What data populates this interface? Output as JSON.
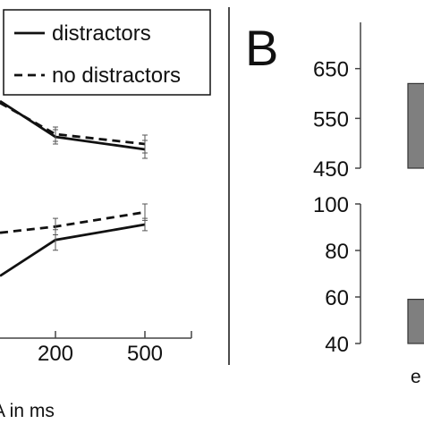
{
  "chart_data": [
    {
      "type": "line",
      "panel": "A",
      "legend": {
        "placement": "top-right",
        "entries": [
          {
            "label": "distractors",
            "style": "solid"
          },
          {
            "label": "no distractors",
            "style": "dashed"
          }
        ]
      },
      "x_tick_labels": [
        "200",
        "500"
      ],
      "xlabel_partial": "A in ms",
      "subplots": [
        {
          "name": "upper",
          "series": [
            {
              "name": "distractors",
              "style": "solid",
              "points": [
                {
                  "x": "0",
                  "y": 0.92
                },
                {
                  "x": "200",
                  "y": 0.52,
                  "err": 0.08
                },
                {
                  "x": "500",
                  "y": 0.38,
                  "err": 0.1
                }
              ]
            },
            {
              "name": "no distractors",
              "style": "dashed",
              "points": [
                {
                  "x": "0",
                  "y": 0.9
                },
                {
                  "x": "200",
                  "y": 0.55,
                  "err": 0.08
                },
                {
                  "x": "500",
                  "y": 0.44,
                  "err": 0.1
                }
              ]
            }
          ]
        },
        {
          "name": "lower",
          "series": [
            {
              "name": "distractors",
              "style": "solid",
              "points": [
                {
                  "x": "0",
                  "y": 0.1
                },
                {
                  "x": "200",
                  "y": 0.45,
                  "err": 0.1
                },
                {
                  "x": "500",
                  "y": 0.6,
                  "err": 0.06
                }
              ]
            },
            {
              "name": "no distractors",
              "style": "dashed",
              "points": [
                {
                  "x": "0",
                  "y": 0.52
                },
                {
                  "x": "200",
                  "y": 0.58,
                  "err": 0.08
                },
                {
                  "x": "500",
                  "y": 0.72,
                  "err": 0.08
                }
              ]
            }
          ]
        }
      ]
    },
    {
      "type": "bar",
      "panel": "B",
      "panel_label": "B",
      "x_tick_label_partial": "e",
      "subplots": [
        {
          "name": "upper",
          "ylim": [
            450,
            680
          ],
          "yticks": [
            450,
            550,
            650
          ],
          "values": [
            620
          ],
          "color": "#7f7f7f"
        },
        {
          "name": "lower",
          "ylim": [
            40,
            100
          ],
          "yticks": [
            40,
            60,
            80,
            100
          ],
          "values": [
            59
          ],
          "color": "#7f7f7f"
        }
      ]
    }
  ]
}
